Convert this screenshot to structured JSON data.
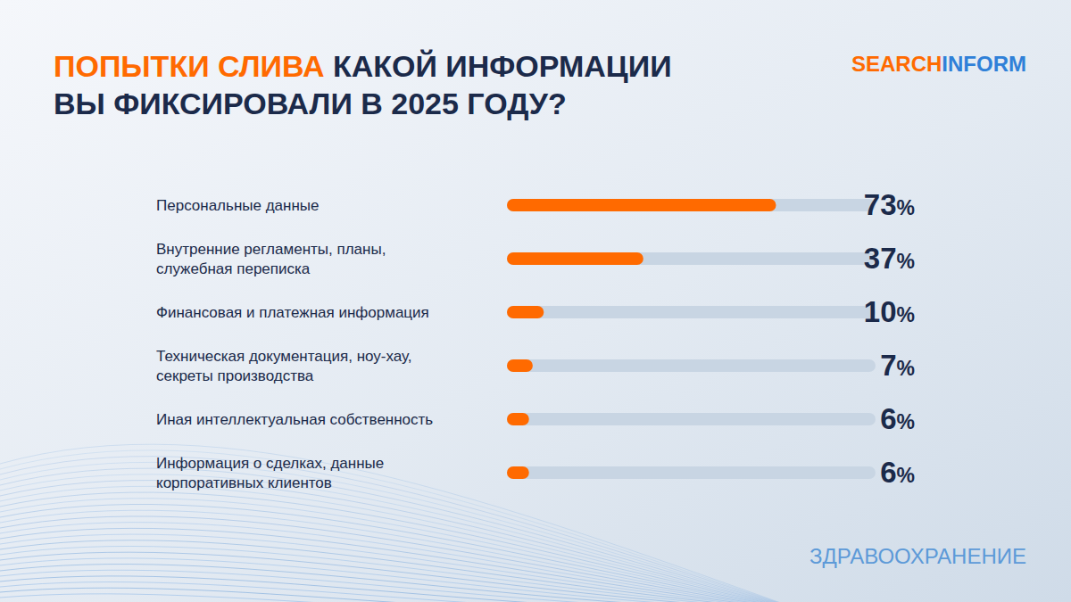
{
  "chart_data": {
    "type": "bar",
    "orientation": "horizontal",
    "title": "ПОПЫТКИ СЛИВА КАКОЙ ИНФОРМАЦИИ ВЫ ФИКСИРОВАЛИ В 2025 ГОДУ?",
    "brand": [
      "SEARCH",
      "INFORM"
    ],
    "footer": "ЗДРАВООХРАНЕНИЕ",
    "categories": [
      "Персональные данные",
      "Внутренние регламенты, планы, служебная переписка",
      "Финансовая и платежная информация",
      "Техническая документация, ноу-хау, секреты производства",
      "Иная интеллектуальная собственность",
      "Информация о сделках, данные корпоративных клиентов"
    ],
    "values": [
      73,
      37,
      10,
      7,
      6,
      6
    ],
    "value_labels": [
      "73%",
      "37%",
      "10%",
      "7%",
      "6%",
      "6%"
    ],
    "data_labels": true,
    "tick_labels": false,
    "grid": false,
    "xlim": [
      0,
      100
    ],
    "color": "#ff6a00"
  }
}
